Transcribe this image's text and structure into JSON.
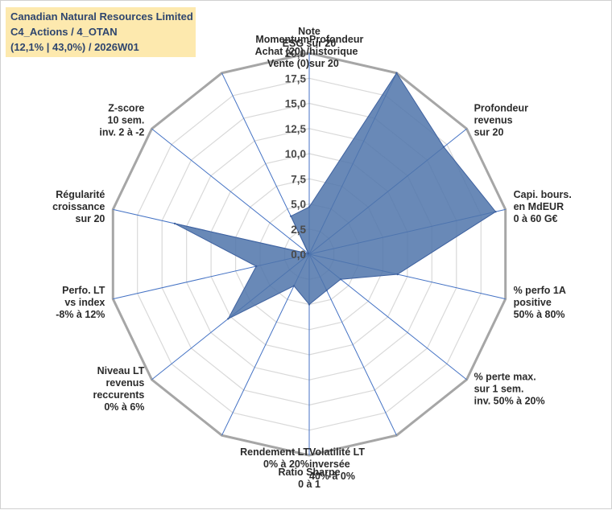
{
  "title": {
    "lines": [
      "Canadian Natural Resources Limited",
      "C4_Actions / 4_OTAN",
      "(12,1% | 43,0%) / 2026W01"
    ]
  },
  "chart_data": {
    "type": "radar",
    "rmin": 0,
    "rmax": 20,
    "ticks": [
      "0,0",
      "2,5",
      "5,0",
      "7,5",
      "10,0",
      "12,5",
      "15,0",
      "17,5",
      "20,0"
    ],
    "grid": true,
    "colors": {
      "fill": "#4f74aa",
      "spoke": "#4472c4",
      "ring": "#d9d9d9",
      "outer": "#a6a6a6"
    },
    "axes": [
      {
        "label": [
          "Note",
          "ESG sur 20"
        ],
        "value": 4.7
      },
      {
        "label": [
          "Profondeur",
          "historique",
          "sur 20"
        ],
        "value": 20.0
      },
      {
        "label": [
          "Profondeur",
          "revenus",
          "sur 20"
        ],
        "value": 17.1
      },
      {
        "label": [
          "Capi. bours.",
          "en MdEUR",
          "0 à 60 G€"
        ],
        "value": 19.0
      },
      {
        "label": [
          "% perfo 1A",
          "positive",
          "50% à 80%"
        ],
        "value": 9.0
      },
      {
        "label": [
          "% perte max.",
          "sur 1 sem.",
          "inv. 50% à 20%"
        ],
        "value": 4.0
      },
      {
        "label": [
          "Volatilité LT",
          "inversée",
          "40% à 0%"
        ],
        "value": 4.0
      },
      {
        "label": [
          "Ratio Sharpe",
          "0 à 1"
        ],
        "value": 5.0
      },
      {
        "label": [
          "Rendement LT",
          "0% à 20%"
        ],
        "value": 3.5
      },
      {
        "label": [
          "Niveau LT",
          "revenus",
          "reccurents",
          "0% à 6%"
        ],
        "value": 10.3
      },
      {
        "label": [
          "Perfo. LT",
          "vs index",
          "-8% à 12%"
        ],
        "value": 5.4
      },
      {
        "label": [
          "Régularité",
          "croissance",
          "sur 20"
        ],
        "value": 13.7
      },
      {
        "label": [
          "Z-score",
          "10 sem.",
          "inv. 2 à -2"
        ],
        "value": 0.1
      },
      {
        "label": [
          "Momentum",
          "Achat (20) /",
          "Vente (0)"
        ],
        "value": 4.2
      }
    ]
  }
}
